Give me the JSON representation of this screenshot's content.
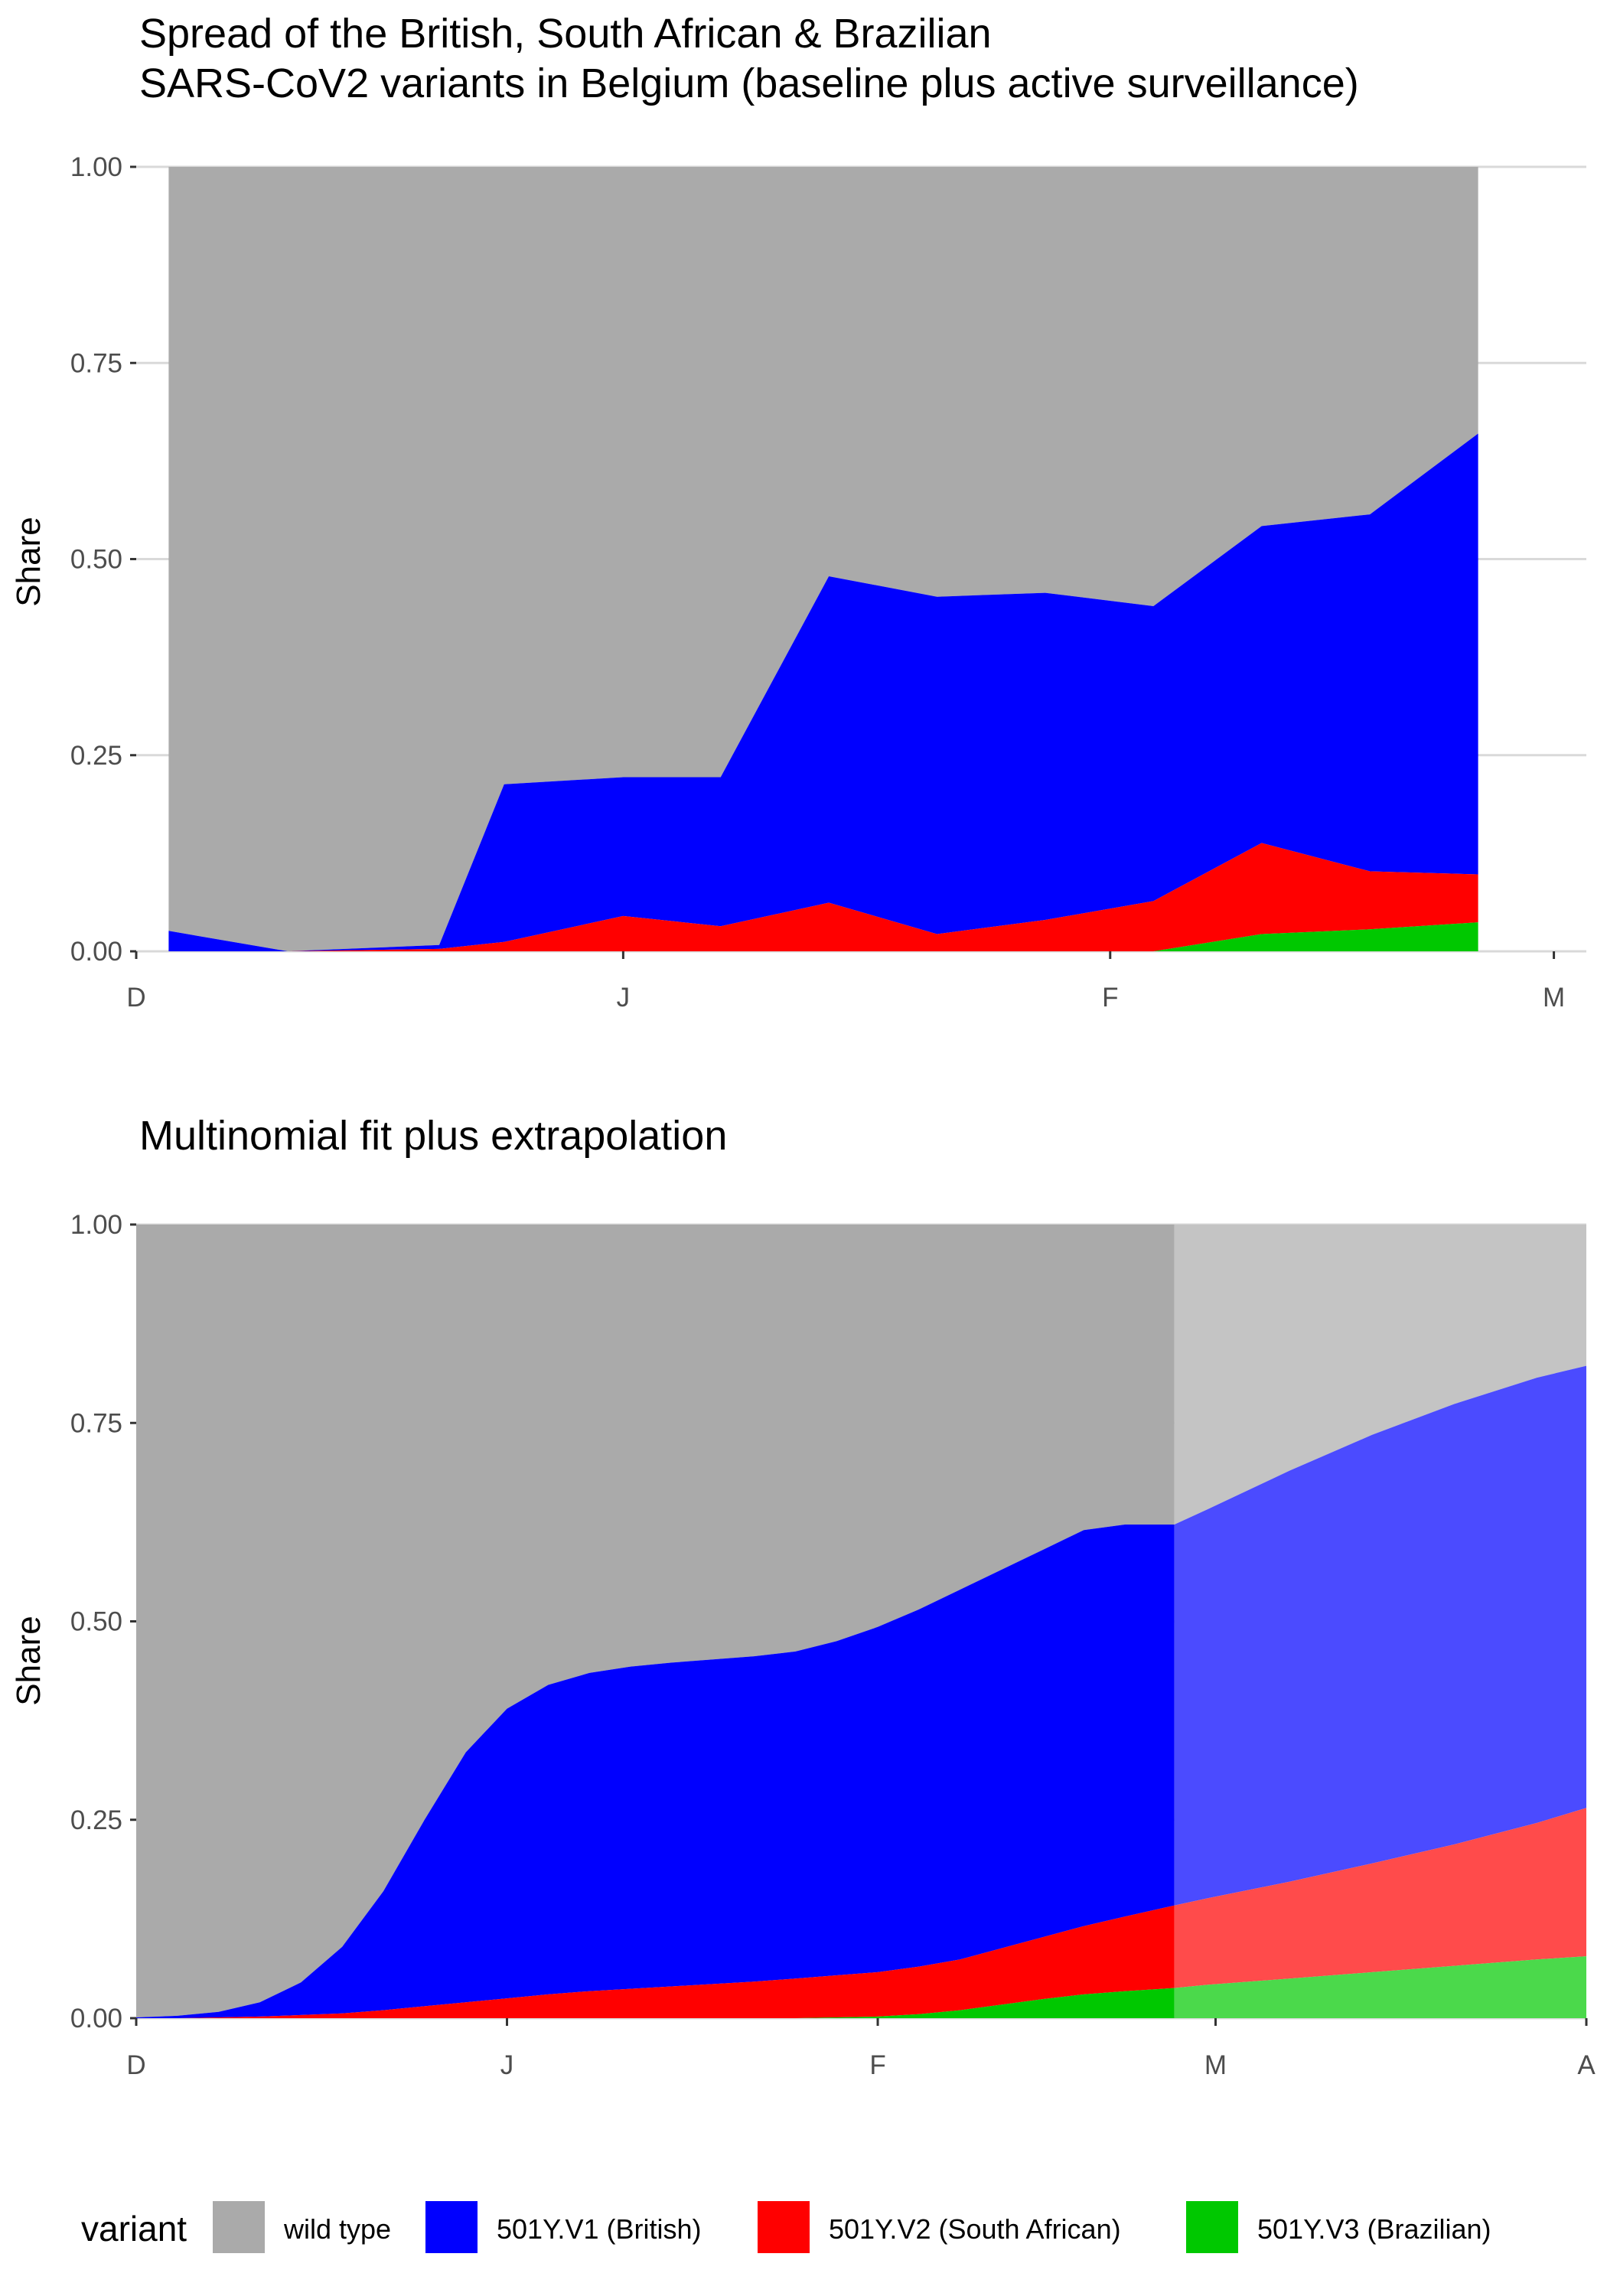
{
  "chart_data": [
    {
      "type": "area",
      "stacked": true,
      "title": [
        "Spread of the British, South African & Brazilian",
        "SARS-CoV2 variants in Belgium (baseline plus active surveillance)"
      ],
      "xlabel": "",
      "ylabel": "Share",
      "xlim": [
        0,
        117
      ],
      "ylim": [
        0,
        1
      ],
      "x_ticks": [
        {
          "value": 0,
          "label": "D"
        },
        {
          "value": 45,
          "label": "J"
        },
        {
          "value": 90,
          "label": "F"
        },
        {
          "value": 131,
          "label": "M"
        }
      ],
      "y_ticks": [
        {
          "value": 0,
          "label": "0.00"
        },
        {
          "value": 0.25,
          "label": "0.25"
        },
        {
          "value": 0.5,
          "label": "0.50"
        },
        {
          "value": 0.75,
          "label": "0.75"
        },
        {
          "value": 1,
          "label": "1.00"
        }
      ],
      "x": [
        3,
        14,
        28,
        34,
        45,
        54,
        64,
        74,
        84,
        94,
        104,
        114,
        124
      ],
      "cumulative": [
        {
          "name": "501Y.V3 (Brazilian)",
          "values": [
            0,
            0,
            0,
            0,
            0,
            0,
            0,
            0,
            0,
            0,
            0.022,
            0.028,
            0.037
          ]
        },
        {
          "name": "501Y.V2 (South African)",
          "values": [
            0,
            0,
            0.003,
            0.012,
            0.045,
            0.032,
            0.062,
            0.022,
            0.04,
            0.064,
            0.138,
            0.102,
            0.098
          ]
        },
        {
          "name": "501Y.V1 (British)",
          "values": [
            0.026,
            0,
            0.008,
            0.213,
            0.222,
            0.222,
            0.478,
            0.452,
            0.457,
            0.44,
            0.542,
            0.557,
            0.66
          ]
        },
        {
          "name": "wild type",
          "values": [
            1,
            1,
            1,
            1,
            1,
            1,
            1,
            1,
            1,
            1,
            1,
            1,
            1
          ]
        }
      ]
    },
    {
      "type": "area",
      "stacked": true,
      "title": [
        "Multinomial fit plus extrapolation"
      ],
      "xlabel": "",
      "ylabel": "Share",
      "xlim": [
        0,
        176
      ],
      "ylim": [
        0,
        1
      ],
      "extrapolation_from_x": 126,
      "x_ticks": [
        {
          "value": 0,
          "label": "D"
        },
        {
          "value": 45,
          "label": "J"
        },
        {
          "value": 90,
          "label": "F"
        },
        {
          "value": 131,
          "label": "M"
        },
        {
          "value": 176,
          "label": "A"
        }
      ],
      "y_ticks": [
        {
          "value": 0,
          "label": "0.00"
        },
        {
          "value": 0.25,
          "label": "0.25"
        },
        {
          "value": 0.5,
          "label": "0.50"
        },
        {
          "value": 0.75,
          "label": "0.75"
        },
        {
          "value": 1,
          "label": "1.00"
        }
      ],
      "x": [
        0,
        5,
        10,
        15,
        20,
        25,
        30,
        35,
        40,
        45,
        50,
        55,
        60,
        65,
        70,
        75,
        80,
        85,
        90,
        95,
        100,
        105,
        110,
        115,
        120,
        126,
        130,
        140,
        150,
        160,
        170,
        176
      ],
      "cumulative": [
        {
          "name": "501Y.V3 (Brazilian)",
          "values": [
            0,
            0,
            0,
            0,
            0,
            0,
            0,
            0,
            0,
            0,
            0,
            0,
            0,
            0,
            0,
            0,
            0,
            0.001,
            0.002,
            0.005,
            0.01,
            0.017,
            0.024,
            0.03,
            0.034,
            0.038,
            0.042,
            0.05,
            0.058,
            0.066,
            0.074,
            0.078
          ]
        },
        {
          "name": "501Y.V2 (South African)",
          "values": [
            0,
            0,
            0.001,
            0.002,
            0.004,
            0.006,
            0.01,
            0.015,
            0.02,
            0.025,
            0.03,
            0.034,
            0.037,
            0.04,
            0.043,
            0.046,
            0.05,
            0.054,
            0.058,
            0.065,
            0.074,
            0.088,
            0.102,
            0.116,
            0.128,
            0.142,
            0.151,
            0.172,
            0.195,
            0.219,
            0.246,
            0.265
          ]
        },
        {
          "name": "501Y.V1 (British)",
          "values": [
            0.001,
            0.003,
            0.008,
            0.02,
            0.045,
            0.09,
            0.16,
            0.25,
            0.335,
            0.39,
            0.42,
            0.435,
            0.443,
            0.448,
            0.452,
            0.456,
            0.462,
            0.475,
            0.493,
            0.515,
            0.54,
            0.565,
            0.59,
            0.615,
            0.622,
            0.622,
            0.641,
            0.69,
            0.735,
            0.774,
            0.807,
            0.822
          ]
        },
        {
          "name": "wild type",
          "values": [
            1,
            1,
            1,
            1,
            1,
            1,
            1,
            1,
            1,
            1,
            1,
            1,
            1,
            1,
            1,
            1,
            1,
            1,
            1,
            1,
            1,
            1,
            1,
            1,
            1,
            1,
            1,
            1,
            1,
            1,
            1,
            1
          ]
        }
      ]
    }
  ],
  "legend": {
    "title": "variant",
    "items": [
      {
        "label": "wild type",
        "color": "#aaaaaa"
      },
      {
        "label": "501Y.V1 (British)",
        "color": "#0000ff"
      },
      {
        "label": "501Y.V2 (South African)",
        "color": "#ff0000"
      },
      {
        "label": "501Y.V3 (Brazilian)",
        "color": "#00c800"
      }
    ]
  },
  "colors": {
    "wild type": "#aaaaaa",
    "501Y.V1 (British)": "#0000ff",
    "501Y.V2 (South African)": "#ff0000",
    "501Y.V3 (Brazilian)": "#00c800",
    "extrapolation_wild": "#c4c4c4",
    "extrapolation_british": "#4b4bff",
    "extrapolation_sa": "#ff4b4b",
    "extrapolation_brazil": "#4bd94b"
  }
}
